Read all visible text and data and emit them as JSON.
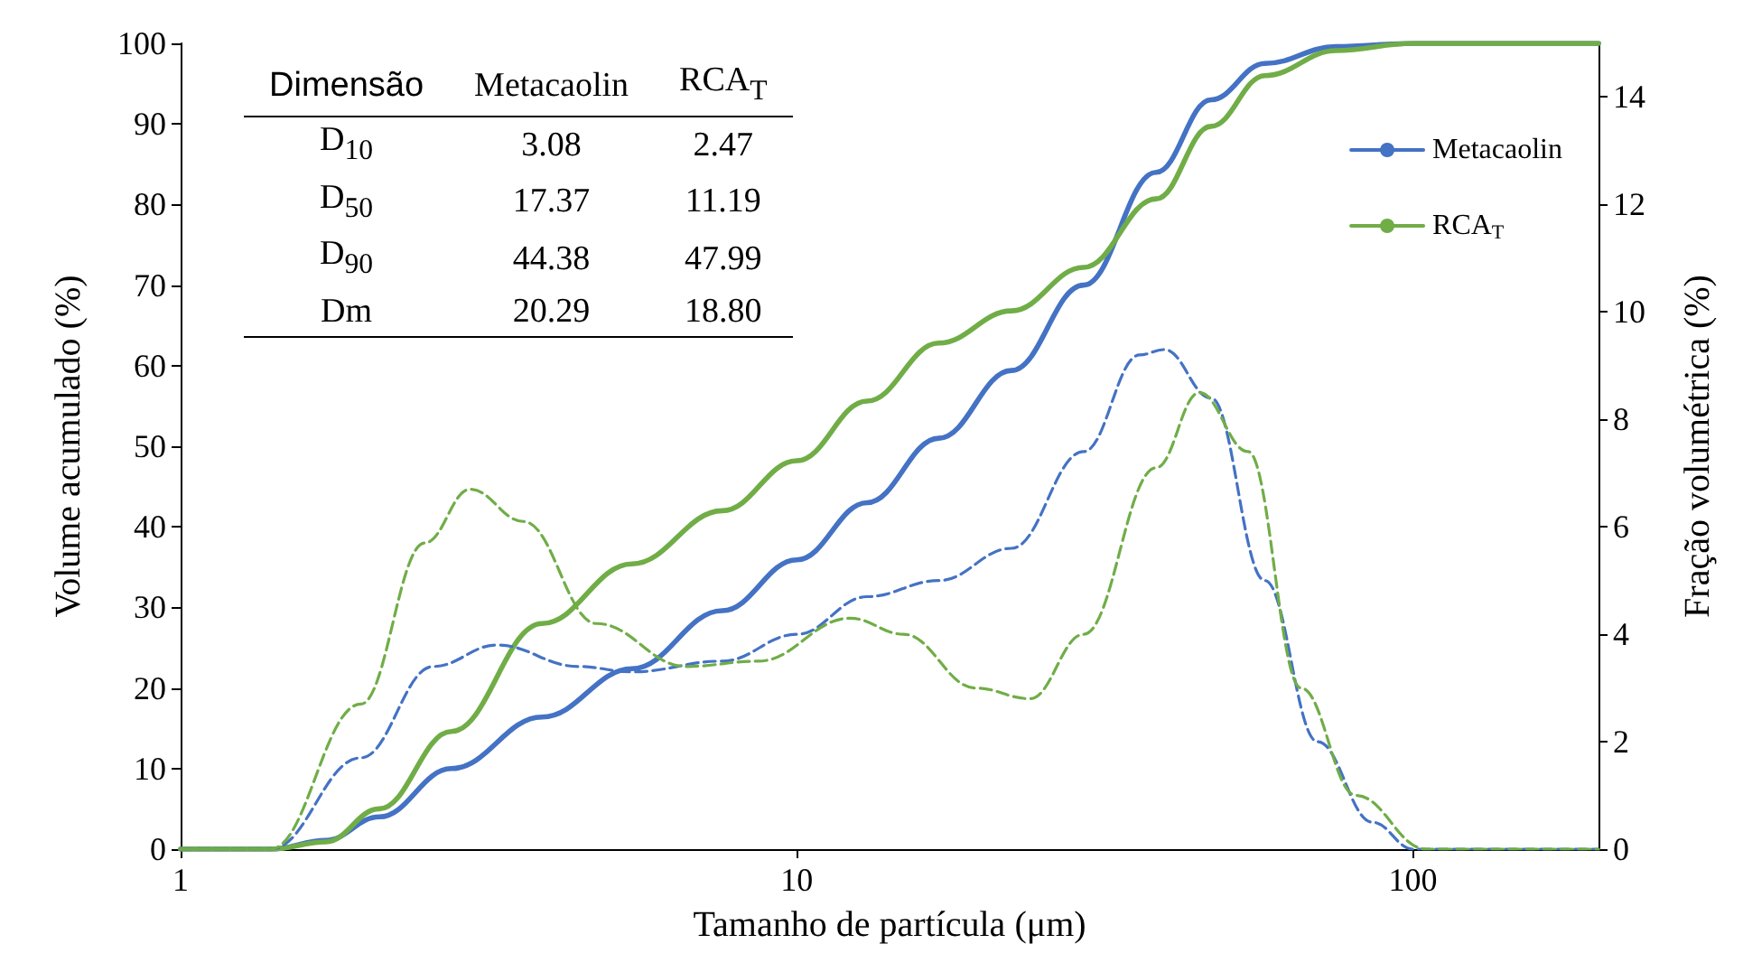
{
  "chart_data": {
    "type": "line",
    "xlabel": "Tamanho de partícula (μm)",
    "ylabel": "Volume acumulado (%)",
    "y2label": "Fração volumétrica (%)",
    "log": "x",
    "xlim": [
      1,
      200
    ],
    "xticks": [
      1,
      10,
      100
    ],
    "ylim": [
      0,
      100
    ],
    "yticks": [
      0,
      10,
      20,
      30,
      40,
      50,
      60,
      70,
      80,
      90,
      100
    ],
    "y2lim": [
      0,
      15
    ],
    "y2ticks": [
      0,
      2,
      4,
      6,
      8,
      10,
      12,
      14
    ],
    "grid": false,
    "legend": "top right",
    "marker": "none",
    "annotations": [
      "Dimensão",
      "Metacaolin",
      "RCA$_{T}$",
      "D$_{10}$",
      "3.08",
      "2.47",
      "D$_{50}$",
      "17.37",
      "11.19",
      "D$_{90}$",
      "44.38",
      "47.99",
      "Dm",
      "20.29",
      "18.80"
    ],
    "series": [
      {
        "name": "Metacaolin",
        "color": "#4472c4",
        "line_style": "solid",
        "x": [
          1,
          1.4,
          1.72,
          2.1,
          2.75,
          3.86,
          5.4,
          7.57,
          10,
          13,
          17,
          22.3,
          29.2,
          38.3,
          47,
          57.5,
          75,
          100,
          200
        ],
        "values": [
          0,
          0,
          1.1,
          4,
          10,
          16.4,
          22.4,
          29.6,
          35.9,
          43,
          51,
          59.4,
          70,
          84,
          93,
          97.5,
          99.6,
          100,
          100
        ]
      },
      {
        "name": "RCA$_{T}$",
        "color": "#70ad47",
        "line_style": "solid",
        "x": [
          1,
          1.4,
          1.72,
          2.1,
          2.75,
          3.86,
          5.4,
          7.57,
          10,
          13,
          17,
          22.3,
          29.2,
          38.3,
          47,
          57.5,
          75,
          100,
          200
        ],
        "values": [
          0,
          0,
          0.9,
          5,
          14.6,
          28,
          35.4,
          42,
          48.2,
          55.6,
          62.8,
          66.8,
          72.2,
          80.7,
          89.7,
          96,
          99.1,
          100,
          100
        ]
      },
      {
        "color": "#4472c4",
        "line_style": "dashed",
        "axis": "y2",
        "x": [
          1,
          1.4,
          1.96,
          2.57,
          3.26,
          4.42,
          5.4,
          7.57,
          10,
          13,
          17,
          22.3,
          29.2,
          36,
          39.5,
          47,
          57.5,
          70,
          86,
          100,
          200
        ],
        "values": [
          0,
          0,
          1.7,
          3.4,
          3.8,
          3.4,
          3.3,
          3.5,
          4.0,
          4.7,
          5.0,
          5.6,
          7.4,
          9.2,
          9.3,
          8.4,
          5.0,
          2.0,
          0.5,
          0,
          0
        ]
      },
      {
        "color": "#70ad47",
        "line_style": "dashed",
        "axis": "y2",
        "x": [
          1,
          1.4,
          1.96,
          2.49,
          2.95,
          3.6,
          4.73,
          6.61,
          8.66,
          12.2,
          14.9,
          19.5,
          23.9,
          29.2,
          38.3,
          45,
          54,
          65.8,
          80.8,
          105,
          200
        ],
        "values": [
          0,
          0,
          2.7,
          5.7,
          6.7,
          6.1,
          4.2,
          3.4,
          3.5,
          4.3,
          4.0,
          3.0,
          2.8,
          4.0,
          7.1,
          8.5,
          7.4,
          3.0,
          1.0,
          0,
          0
        ]
      }
    ]
  }
}
